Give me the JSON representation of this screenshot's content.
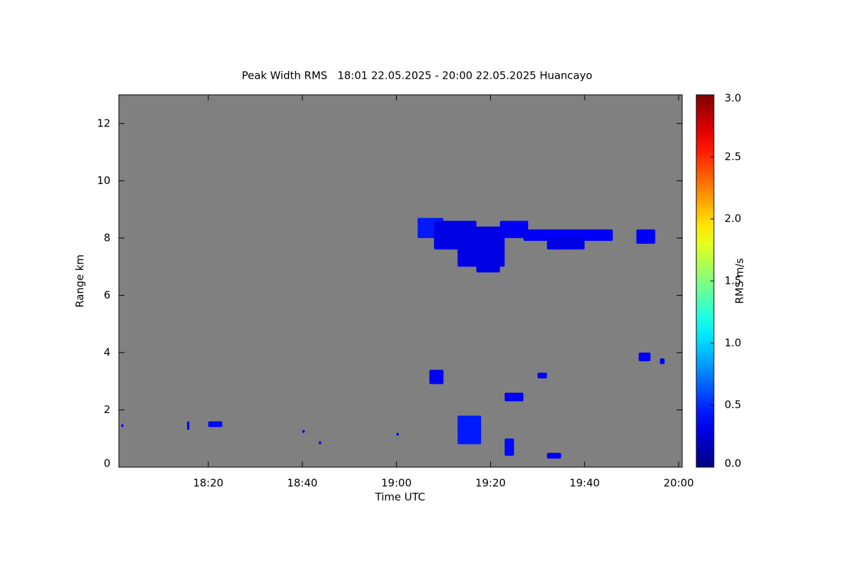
{
  "chart_data": {
    "type": "heatmap",
    "title": "Peak Width RMS   18:01 22.05.2025 - 20:00 22.05.2025 Huancayo",
    "x_label": "Time UTC",
    "y_label": "Range km",
    "colorbar_label": "RMS m/s",
    "colormap": "jet",
    "background": "#808080",
    "xlim": [
      1081,
      1200.75
    ],
    "xticks": [
      {
        "value": 1100,
        "label": "18:20"
      },
      {
        "value": 1120,
        "label": "18:40"
      },
      {
        "value": 1140,
        "label": "19:00"
      },
      {
        "value": 1160,
        "label": "19:20"
      },
      {
        "value": 1180,
        "label": "19:40"
      },
      {
        "value": 1200,
        "label": "20:00"
      }
    ],
    "ylim": [
      0,
      13
    ],
    "yticks": [
      0,
      2,
      4,
      6,
      8,
      10,
      12
    ],
    "clim": [
      0,
      3
    ],
    "cticks": [
      {
        "value": 0,
        "label": "0.0"
      },
      {
        "value": 0.5,
        "label": "0.5"
      },
      {
        "value": 1,
        "label": "1.0"
      },
      {
        "value": 1.5,
        "label": "1.5"
      },
      {
        "value": 2,
        "label": "2.0"
      },
      {
        "value": 2.5,
        "label": "2.5"
      },
      {
        "value": 3,
        "label": "3.0"
      }
    ],
    "cells": [
      {
        "x": [
          1144.5,
          1150
        ],
        "y": [
          8.0,
          8.7
        ],
        "value": 0.45
      },
      {
        "x": [
          1148,
          1157
        ],
        "y": [
          7.6,
          8.6
        ],
        "value": 0.3
      },
      {
        "x": [
          1153,
          1163
        ],
        "y": [
          7.0,
          8.4
        ],
        "value": 0.3
      },
      {
        "x": [
          1157,
          1162
        ],
        "y": [
          6.8,
          7.4
        ],
        "value": 0.3
      },
      {
        "x": [
          1162,
          1168
        ],
        "y": [
          8.0,
          8.6
        ],
        "value": 0.35
      },
      {
        "x": [
          1167,
          1186
        ],
        "y": [
          7.9,
          8.3
        ],
        "value": 0.35
      },
      {
        "x": [
          1172,
          1180
        ],
        "y": [
          7.6,
          8.0
        ],
        "value": 0.3
      },
      {
        "x": [
          1191,
          1195
        ],
        "y": [
          7.8,
          8.3
        ],
        "value": 0.35
      },
      {
        "x": [
          1147,
          1150
        ],
        "y": [
          2.9,
          3.4
        ],
        "value": 0.35
      },
      {
        "x": [
          1191.5,
          1194
        ],
        "y": [
          3.7,
          4.0
        ],
        "value": 0.35
      },
      {
        "x": [
          1196,
          1197
        ],
        "y": [
          3.6,
          3.8
        ],
        "value": 0.35
      },
      {
        "x": [
          1170,
          1172
        ],
        "y": [
          3.1,
          3.3
        ],
        "value": 0.35
      },
      {
        "x": [
          1163,
          1167
        ],
        "y": [
          2.3,
          2.6
        ],
        "value": 0.35
      },
      {
        "x": [
          1153,
          1158
        ],
        "y": [
          0.8,
          1.8
        ],
        "value": 0.45
      },
      {
        "x": [
          1163,
          1165
        ],
        "y": [
          0.4,
          1.0
        ],
        "value": 0.4
      },
      {
        "x": [
          1172,
          1175
        ],
        "y": [
          0.3,
          0.5
        ],
        "value": 0.35
      },
      {
        "x": [
          1095.5,
          1096
        ],
        "y": [
          1.3,
          1.6
        ],
        "value": 0.4
      },
      {
        "x": [
          1100,
          1103
        ],
        "y": [
          1.4,
          1.6
        ],
        "value": 0.4
      },
      {
        "x": [
          1081.5,
          1082
        ],
        "y": [
          1.4,
          1.5
        ],
        "value": 0.4
      },
      {
        "x": [
          1120,
          1120.5
        ],
        "y": [
          1.2,
          1.3
        ],
        "value": 0.3
      },
      {
        "x": [
          1123.5,
          1124
        ],
        "y": [
          0.8,
          0.9
        ],
        "value": 0.3
      },
      {
        "x": [
          1140,
          1140.5
        ],
        "y": [
          1.1,
          1.2
        ],
        "value": 0.3
      }
    ]
  }
}
